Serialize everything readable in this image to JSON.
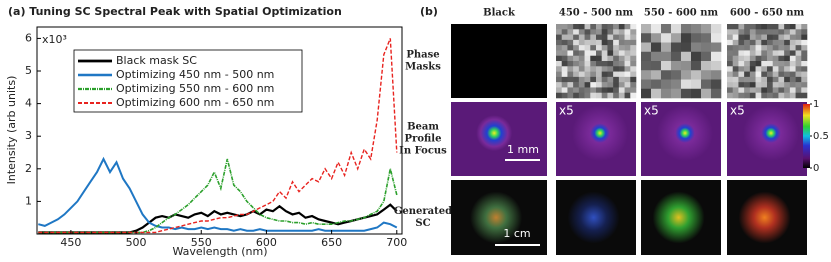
{
  "chart_data": {
    "type": "line",
    "title": "(a) Tuning SC Spectral Peak with Spatial Optimization",
    "x_label": "Wavelength (nm)",
    "y_label": "Intensity (arb units)",
    "y_multiplier": "x10³",
    "legend": "upper left",
    "x": [
      425,
      430,
      435,
      440,
      445,
      450,
      455,
      460,
      465,
      470,
      475,
      480,
      485,
      490,
      495,
      500,
      505,
      510,
      515,
      520,
      525,
      530,
      535,
      540,
      545,
      550,
      555,
      560,
      565,
      570,
      575,
      580,
      585,
      590,
      595,
      600,
      605,
      610,
      615,
      620,
      625,
      630,
      635,
      640,
      645,
      650,
      655,
      660,
      665,
      670,
      675,
      680,
      685,
      690,
      695,
      700
    ],
    "series": [
      {
        "name": "Black mask SC",
        "color": "#000000",
        "width": 2.2,
        "dash": "",
        "values": [
          0.05,
          0.05,
          0.05,
          0.05,
          0.05,
          0.05,
          0.05,
          0.05,
          0.05,
          0.05,
          0.05,
          0.05,
          0.05,
          0.05,
          0.05,
          0.1,
          0.2,
          0.35,
          0.5,
          0.55,
          0.5,
          0.6,
          0.55,
          0.5,
          0.6,
          0.65,
          0.55,
          0.7,
          0.6,
          0.65,
          0.6,
          0.55,
          0.6,
          0.7,
          0.6,
          0.75,
          0.7,
          0.85,
          0.7,
          0.6,
          0.65,
          0.5,
          0.55,
          0.45,
          0.4,
          0.35,
          0.3,
          0.35,
          0.4,
          0.45,
          0.5,
          0.55,
          0.6,
          0.75,
          0.9,
          0.7
        ]
      },
      {
        "name": "Optimizing 450 nm - 500 nm",
        "color": "#1f77c4",
        "width": 2,
        "dash": "",
        "values": [
          0.3,
          0.25,
          0.35,
          0.45,
          0.6,
          0.8,
          1.0,
          1.3,
          1.6,
          1.9,
          2.3,
          1.9,
          2.2,
          1.7,
          1.4,
          1.0,
          0.6,
          0.35,
          0.25,
          0.2,
          0.2,
          0.15,
          0.2,
          0.15,
          0.15,
          0.2,
          0.15,
          0.2,
          0.15,
          0.15,
          0.1,
          0.15,
          0.1,
          0.1,
          0.15,
          0.1,
          0.1,
          0.1,
          0.1,
          0.1,
          0.1,
          0.1,
          0.1,
          0.15,
          0.1,
          0.1,
          0.1,
          0.1,
          0.1,
          0.1,
          0.1,
          0.15,
          0.2,
          0.35,
          0.3,
          0.2
        ]
      },
      {
        "name": "Optimizing 550 nm - 600 nm",
        "color": "#2ca02c",
        "width": 1.6,
        "dash": "4 1 1 1",
        "values": [
          0.05,
          0.05,
          0.05,
          0.05,
          0.05,
          0.05,
          0.05,
          0.05,
          0.05,
          0.05,
          0.05,
          0.05,
          0.05,
          0.05,
          0.05,
          0.05,
          0.05,
          0.1,
          0.2,
          0.35,
          0.5,
          0.6,
          0.75,
          0.9,
          1.1,
          1.3,
          1.5,
          1.9,
          1.4,
          2.3,
          1.5,
          1.3,
          1.0,
          0.8,
          0.6,
          0.5,
          0.45,
          0.4,
          0.4,
          0.35,
          0.35,
          0.3,
          0.35,
          0.3,
          0.3,
          0.3,
          0.35,
          0.4,
          0.4,
          0.45,
          0.5,
          0.6,
          0.7,
          1.0,
          2.0,
          1.2
        ]
      },
      {
        "name": "Optimizing 600 nm - 650 nm",
        "color": "#e8231f",
        "width": 1.4,
        "dash": "4 2",
        "values": [
          0.05,
          0.05,
          0.05,
          0.05,
          0.05,
          0.05,
          0.05,
          0.05,
          0.05,
          0.05,
          0.05,
          0.05,
          0.05,
          0.05,
          0.05,
          0.05,
          0.05,
          0.05,
          0.05,
          0.1,
          0.15,
          0.2,
          0.25,
          0.3,
          0.35,
          0.4,
          0.4,
          0.45,
          0.5,
          0.5,
          0.55,
          0.6,
          0.6,
          0.7,
          0.8,
          0.9,
          1.0,
          1.3,
          1.1,
          1.6,
          1.3,
          1.5,
          1.7,
          1.6,
          2.0,
          1.7,
          2.2,
          1.8,
          2.5,
          2.0,
          2.6,
          2.3,
          3.5,
          5.5,
          6.0,
          2.5
        ]
      }
    ],
    "xlim": [
      424,
      704
    ],
    "ylim": [
      0,
      6.35
    ],
    "xticks": [
      450,
      500,
      550,
      600,
      650,
      700
    ],
    "yticks": [
      1,
      2,
      3,
      4,
      5,
      6
    ]
  },
  "panel_b": {
    "label": "(b)",
    "columns": [
      "Black",
      "450 - 500 nm",
      "550 - 600 nm",
      "600 - 650 nm"
    ],
    "rows": [
      [
        "Phase",
        "Masks"
      ],
      [
        "Beam",
        "Profile",
        "In Focus"
      ],
      [
        "Generated",
        "SC"
      ]
    ],
    "overlays": [
      "x5",
      "x5",
      "x5"
    ],
    "scale_bars": [
      "1 mm",
      "1 cm"
    ],
    "colorbar_lim": [
      0,
      1
    ],
    "colorbar_ticks": [
      1,
      0.5,
      0
    ]
  }
}
